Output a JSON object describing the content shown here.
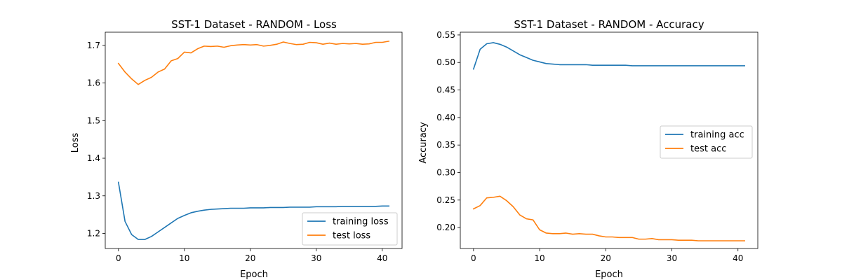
{
  "colors": {
    "training": "#1f77b4",
    "test": "#ff7f0e"
  },
  "chart_data": [
    {
      "type": "line",
      "title": "SST-1 Dataset - RANDOM - Loss",
      "xlabel": "Epoch",
      "ylabel": "Loss",
      "xlim": [
        -2,
        43
      ],
      "ylim": [
        1.16,
        1.735
      ],
      "xticks": [
        0,
        10,
        20,
        30,
        40
      ],
      "yticks": [
        1.2,
        1.3,
        1.4,
        1.5,
        1.6,
        1.7
      ],
      "ytick_labels": [
        "1.2",
        "1.3",
        "1.4",
        "1.5",
        "1.6",
        "1.7"
      ],
      "legend": "bottom-right",
      "x": [
        0,
        1,
        2,
        3,
        4,
        5,
        6,
        7,
        8,
        9,
        10,
        11,
        12,
        13,
        14,
        15,
        16,
        17,
        18,
        19,
        20,
        21,
        22,
        23,
        24,
        25,
        26,
        27,
        28,
        29,
        30,
        31,
        32,
        33,
        34,
        35,
        36,
        37,
        38,
        39,
        40,
        41
      ],
      "series": [
        {
          "name": "training loss",
          "values": [
            1.336,
            1.232,
            1.197,
            1.184,
            1.184,
            1.192,
            1.204,
            1.216,
            1.228,
            1.24,
            1.248,
            1.255,
            1.259,
            1.262,
            1.264,
            1.265,
            1.266,
            1.267,
            1.267,
            1.267,
            1.268,
            1.268,
            1.268,
            1.269,
            1.269,
            1.269,
            1.27,
            1.27,
            1.27,
            1.27,
            1.271,
            1.271,
            1.271,
            1.271,
            1.272,
            1.272,
            1.272,
            1.272,
            1.272,
            1.272,
            1.273,
            1.273
          ]
        },
        {
          "name": "test loss",
          "values": [
            1.652,
            1.629,
            1.611,
            1.596,
            1.607,
            1.615,
            1.629,
            1.637,
            1.659,
            1.665,
            1.682,
            1.68,
            1.691,
            1.698,
            1.697,
            1.698,
            1.695,
            1.699,
            1.701,
            1.702,
            1.701,
            1.702,
            1.698,
            1.7,
            1.703,
            1.709,
            1.705,
            1.702,
            1.703,
            1.708,
            1.707,
            1.703,
            1.706,
            1.703,
            1.705,
            1.704,
            1.705,
            1.703,
            1.704,
            1.708,
            1.708,
            1.711
          ]
        }
      ]
    },
    {
      "type": "line",
      "title": "SST-1 Dataset - RANDOM - Accuracy",
      "xlabel": "Epoch",
      "ylabel": "Accuracy",
      "xlim": [
        -2,
        43
      ],
      "ylim": [
        0.162,
        0.555
      ],
      "xticks": [
        0,
        10,
        20,
        30,
        40
      ],
      "yticks": [
        0.2,
        0.25,
        0.3,
        0.35,
        0.4,
        0.45,
        0.5,
        0.55
      ],
      "ytick_labels": [
        "0.20",
        "0.25",
        "0.30",
        "0.35",
        "0.40",
        "0.45",
        "0.50",
        "0.55"
      ],
      "legend": "center-right",
      "x": [
        0,
        1,
        2,
        3,
        4,
        5,
        6,
        7,
        8,
        9,
        10,
        11,
        12,
        13,
        14,
        15,
        16,
        17,
        18,
        19,
        20,
        21,
        22,
        23,
        24,
        25,
        26,
        27,
        28,
        29,
        30,
        31,
        32,
        33,
        34,
        35,
        36,
        37,
        38,
        39,
        40,
        41
      ],
      "series": [
        {
          "name": "training acc",
          "values": [
            0.488,
            0.524,
            0.534,
            0.536,
            0.533,
            0.528,
            0.521,
            0.514,
            0.509,
            0.504,
            0.501,
            0.498,
            0.497,
            0.496,
            0.496,
            0.496,
            0.496,
            0.496,
            0.495,
            0.495,
            0.495,
            0.495,
            0.495,
            0.495,
            0.494,
            0.494,
            0.494,
            0.494,
            0.494,
            0.494,
            0.494,
            0.494,
            0.494,
            0.494,
            0.494,
            0.494,
            0.494,
            0.494,
            0.494,
            0.494,
            0.494,
            0.494
          ]
        },
        {
          "name": "test acc",
          "values": [
            0.234,
            0.24,
            0.254,
            0.255,
            0.257,
            0.249,
            0.238,
            0.223,
            0.216,
            0.214,
            0.196,
            0.19,
            0.189,
            0.189,
            0.19,
            0.188,
            0.189,
            0.188,
            0.188,
            0.185,
            0.183,
            0.183,
            0.182,
            0.182,
            0.182,
            0.179,
            0.179,
            0.18,
            0.178,
            0.178,
            0.178,
            0.177,
            0.177,
            0.177,
            0.176,
            0.176,
            0.176,
            0.176,
            0.176,
            0.176,
            0.176,
            0.176
          ]
        }
      ]
    }
  ]
}
